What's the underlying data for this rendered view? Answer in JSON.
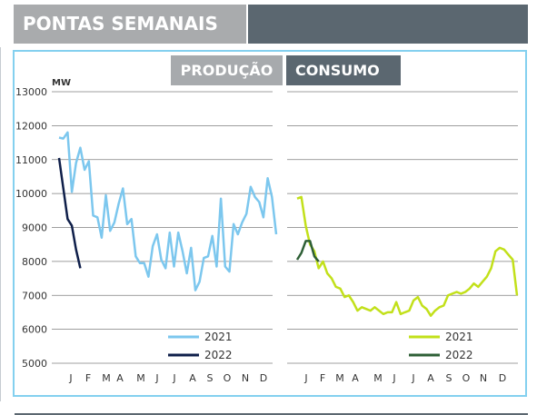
{
  "header": {
    "title": "PONTAS SEMANAIS"
  },
  "panels": {
    "production_label": "PRODUÇÃO",
    "consumption_label": "CONSUMO"
  },
  "colors": {
    "prod_2021": "#7cc7ee",
    "prod_2022": "#0f1f4a",
    "cons_2021": "#c2e01a",
    "cons_2022": "#2e5f36",
    "frame": "#84d0ef",
    "grid": "#7f7f7f"
  },
  "chart_data": [
    {
      "type": "line",
      "title": "PRODUÇÃO",
      "ylabel": "MW",
      "ylim": [
        5000,
        13000
      ],
      "yticks": [
        5000,
        6000,
        7000,
        8000,
        9000,
        10000,
        11000,
        12000,
        13000
      ],
      "x_range": [
        1,
        52
      ],
      "x_tick_labels": [
        "J",
        "F",
        "M",
        "A",
        "M",
        "J",
        "J",
        "A",
        "S",
        "O",
        "N",
        "D"
      ],
      "legend_position": "bottom-right",
      "series": [
        {
          "name": "2021",
          "x": [
            1,
            2,
            3,
            4,
            5,
            6,
            7,
            8,
            9,
            10,
            11,
            12,
            13,
            14,
            15,
            16,
            17,
            18,
            19,
            20,
            21,
            22,
            23,
            24,
            25,
            26,
            27,
            28,
            29,
            30,
            31,
            32,
            33,
            34,
            35,
            36,
            37,
            38,
            39,
            40,
            41,
            42,
            43,
            44,
            45,
            46,
            47,
            48,
            49,
            50,
            51,
            52
          ],
          "values": [
            11650,
            11620,
            11800,
            10050,
            10900,
            11350,
            10700,
            10950,
            9350,
            9300,
            8700,
            9950,
            8900,
            9150,
            9700,
            10150,
            9100,
            9250,
            8150,
            7950,
            7950,
            7550,
            8450,
            8800,
            8050,
            7800,
            8850,
            7850,
            8850,
            8300,
            7650,
            8400,
            7150,
            7400,
            8100,
            8150,
            8750,
            7850,
            9850,
            7850,
            7700,
            9100,
            8800,
            9150,
            9400,
            10200,
            9900,
            9750,
            9300,
            10450,
            9900,
            8800
          ]
        },
        {
          "name": "2022",
          "x": [
            1,
            2,
            3,
            4,
            5,
            6
          ],
          "values": [
            11050,
            10150,
            9250,
            9050,
            8350,
            7800
          ]
        }
      ]
    },
    {
      "type": "line",
      "title": "CONSUMO",
      "ylim": [
        5000,
        13000
      ],
      "x_range": [
        1,
        52
      ],
      "x_tick_labels": [
        "J",
        "F",
        "M",
        "A",
        "M",
        "J",
        "J",
        "A",
        "S",
        "O",
        "N",
        "D"
      ],
      "legend_position": "bottom-right",
      "series": [
        {
          "name": "2021",
          "x": [
            1,
            2,
            3,
            4,
            5,
            6,
            7,
            8,
            9,
            10,
            11,
            12,
            13,
            14,
            15,
            16,
            17,
            18,
            19,
            20,
            21,
            22,
            23,
            24,
            25,
            26,
            27,
            28,
            29,
            30,
            31,
            32,
            33,
            34,
            35,
            36,
            37,
            38,
            39,
            40,
            41,
            42,
            43,
            44,
            45,
            46,
            47,
            48,
            49,
            50,
            51,
            52
          ],
          "values": [
            9850,
            9900,
            9050,
            8500,
            8300,
            7800,
            8000,
            7650,
            7500,
            7250,
            7200,
            6950,
            7000,
            6800,
            6550,
            6650,
            6600,
            6550,
            6650,
            6550,
            6450,
            6500,
            6500,
            6800,
            6450,
            6500,
            6550,
            6850,
            6950,
            6700,
            6600,
            6400,
            6550,
            6650,
            6700,
            7000,
            7050,
            7100,
            7050,
            7100,
            7200,
            7350,
            7250,
            7400,
            7550,
            7800,
            8300,
            8400,
            8350,
            8200,
            8050,
            7000
          ]
        },
        {
          "name": "2022",
          "x": [
            1,
            2,
            3,
            4,
            5,
            6
          ],
          "values": [
            8050,
            8250,
            8600,
            8600,
            8150,
            8000
          ]
        }
      ]
    }
  ]
}
